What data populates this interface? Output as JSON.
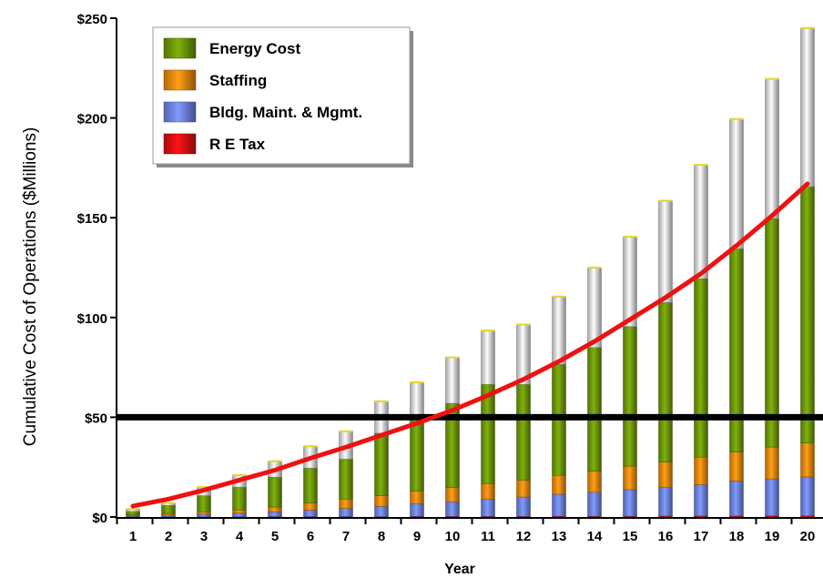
{
  "chart_data": {
    "type": "bar",
    "stacked": true,
    "title": "",
    "xlabel": "Year",
    "ylabel": "Cumulative Cost of Operations ($Millions)",
    "ylim": [
      0,
      250
    ],
    "yticks": [
      0,
      50,
      100,
      150,
      200,
      250
    ],
    "ytick_labels": [
      "$0",
      "$50",
      "$100",
      "$150",
      "$200",
      "$250"
    ],
    "categories": [
      "1",
      "2",
      "3",
      "4",
      "5",
      "6",
      "7",
      "8",
      "9",
      "10",
      "11",
      "12",
      "13",
      "14",
      "15",
      "16",
      "17",
      "18",
      "19",
      "20"
    ],
    "legend_position": "top-left",
    "series": [
      {
        "name": "R E Tax",
        "color": "#e01010",
        "values": [
          0.1,
          0.1,
          0.1,
          0.1,
          0.2,
          0.2,
          0.2,
          0.2,
          0.3,
          0.3,
          0.3,
          0.3,
          0.4,
          0.4,
          0.4,
          0.5,
          0.5,
          0.5,
          0.6,
          0.6
        ]
      },
      {
        "name": "Bldg. Maint. & Mgmt.",
        "color": "#6f86e6",
        "values": [
          0.4,
          0.9,
          1.3,
          1.8,
          2.4,
          3.2,
          4.1,
          5.1,
          6.3,
          7.3,
          8.6,
          9.7,
          11.0,
          12.0,
          13.3,
          14.5,
          15.7,
          17.5,
          18.5,
          19.5
        ]
      },
      {
        "name": "Staffing",
        "color": "#f08a10",
        "values": [
          0.5,
          0.8,
          1.2,
          1.6,
          2.4,
          3.6,
          4.7,
          5.4,
          6.4,
          7.2,
          7.9,
          8.5,
          9.5,
          10.6,
          11.8,
          12.5,
          13.8,
          14.5,
          16.0,
          17.0
        ]
      },
      {
        "name": "Energy Cost",
        "color": "#6f9a0a",
        "values": [
          1.8,
          4.0,
          8.1,
          11.5,
          15.0,
          17.5,
          20.0,
          31.3,
          35.5,
          42.2,
          49.7,
          48.0,
          55.6,
          62.0,
          70.0,
          80.0,
          89.5,
          102.0,
          114.5,
          128.5
        ]
      },
      {
        "name": "",
        "color": "#dcdcdc",
        "values": [
          1.2,
          1.2,
          4.3,
          6.0,
          8.0,
          11.0,
          14.0,
          16.0,
          19.0,
          23.0,
          27.0,
          30.0,
          34.0,
          40.0,
          45.0,
          51.0,
          57.0,
          65.0,
          70.0,
          79.5
        ]
      }
    ],
    "line": {
      "color": "#ee1111",
      "values": [
        5.5,
        9,
        13.5,
        18.5,
        23.5,
        29.5,
        35,
        41,
        47,
        53.5,
        61,
        69,
        78,
        88,
        99,
        110,
        122,
        136,
        151,
        167
      ]
    },
    "reference_line": {
      "y": 50,
      "color": "#000000"
    },
    "grid": false
  }
}
